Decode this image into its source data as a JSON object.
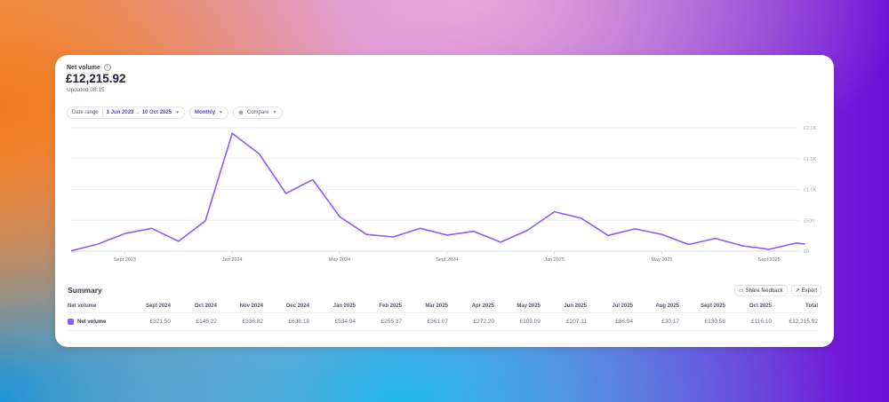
{
  "header": {
    "title": "Net volume",
    "info_icon": "info-icon",
    "amount": "£12,215.92",
    "updated": "Updated 08:15"
  },
  "filters": {
    "date_range_label": "Date range",
    "date_range_value": "1 Jun 2023 → 10 Oct 2025",
    "interval": "Monthly",
    "compare": "Compare"
  },
  "colors": {
    "accent": "#8b5cf6",
    "accent_text": "#5b3fd6"
  },
  "chart_data": {
    "type": "line",
    "title": "",
    "xlabel": "",
    "ylabel": "",
    "x": [
      "Jun 2023",
      "Jul 2023",
      "Aug 2023",
      "Sept 2023",
      "Oct 2023",
      "Nov 2023",
      "Dec 2023",
      "Jan 2024",
      "Feb 2024",
      "Mar 2024",
      "Apr 2024",
      "May 2024",
      "Jun 2024",
      "Jul 2024",
      "Aug 2024",
      "Sept 2024",
      "Oct 2024",
      "Nov 2024",
      "Dec 2024",
      "Jan 2025",
      "Feb 2025",
      "Mar 2025",
      "Apr 2025",
      "May 2025",
      "Jun 2025",
      "Jul 2025",
      "Aug 2025",
      "Sept 2025",
      "Oct 2025"
    ],
    "series": [
      {
        "values": [
          5,
          115,
          285,
          370,
          160,
          490,
          1910,
          1580,
          935,
          1160,
          560,
          270,
          230,
          370,
          260,
          321.5,
          145.22,
          338.82,
          638.18,
          534.04,
          255.37,
          361.07,
          272.2,
          108.09,
          207.11,
          86.04,
          30.17,
          130.58,
          116.1
        ]
      }
    ],
    "x_ticks": [
      "Sept 2023",
      "Jan 2024",
      "May 2024",
      "Sept 2024",
      "Jan 2025",
      "May 2025",
      "Sept 2025"
    ],
    "y_ticks": [
      "£0",
      "£500",
      "£1.0K",
      "£1.5K",
      "£2.0K"
    ],
    "y_tick_values": [
      0,
      500,
      1000,
      1500,
      2000
    ],
    "ylim": [
      0,
      2000
    ],
    "grid": true,
    "y_axis_side": "right"
  },
  "summary": {
    "title": "Summary",
    "share_feedback": "Share feedback",
    "export": "Export",
    "header_label": "Net volume",
    "columns": [
      "Sept 2024",
      "Oct 2024",
      "Nov 2024",
      "Dec 2024",
      "Jan 2025",
      "Feb 2025",
      "Mar 2025",
      "Apr 2025",
      "May 2025",
      "Jun 2025",
      "Jul 2025",
      "Aug 2025",
      "Sept 2025",
      "Oct 2025",
      "Total"
    ],
    "row_label": "Net volume",
    "values": [
      "£321.50",
      "£145.22",
      "£338.82",
      "£638.18",
      "£534.04",
      "£255.37",
      "£361.07",
      "£272.20",
      "£108.09",
      "£207.11",
      "£86.04",
      "£30.17",
      "£130.58",
      "£116.10",
      "£12,215.92"
    ]
  }
}
